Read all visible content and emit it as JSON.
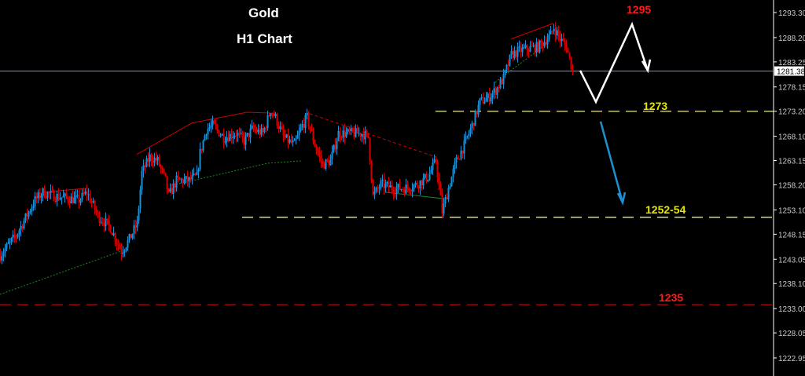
{
  "header": {
    "title": "Gold",
    "subtitle": "H1 Chart"
  },
  "colors": {
    "background": "#000000",
    "up": "#1e90d0",
    "down": "#d00000",
    "axis": "#ffffff",
    "current": "#8a8f99"
  },
  "chart_data": {
    "type": "candlestick",
    "title": "Gold",
    "subtitle": "H1 Chart",
    "ylim": [
      1220.5,
      1295.8
    ],
    "xlim_bars": [
      0,
      492
    ],
    "y_ticks": [
      "1293.30",
      "1288.20",
      "1283.25",
      "1278.15",
      "1273.20",
      "1268.10",
      "1263.15",
      "1258.20",
      "1253.10",
      "1248.15",
      "1243.05",
      "1238.10",
      "1233.00",
      "1228.05",
      "1222.95"
    ],
    "current_price": "1281.38",
    "close_path": [
      [
        0,
        1243.9
      ],
      [
        10,
        1247.9
      ],
      [
        22,
        1255.1
      ],
      [
        27,
        1256.7
      ],
      [
        35,
        1255.9
      ],
      [
        50,
        1255.1
      ],
      [
        55,
        1256.7
      ],
      [
        62,
        1251.9
      ],
      [
        70,
        1249.5
      ],
      [
        77,
        1244.7
      ],
      [
        82,
        1247.1
      ],
      [
        87,
        1250.3
      ],
      [
        90,
        1260.7
      ],
      [
        95,
        1263.9
      ],
      [
        100,
        1263.1
      ],
      [
        105,
        1259.1
      ],
      [
        107,
        1255.9
      ],
      [
        112,
        1259.1
      ],
      [
        120,
        1259.1
      ],
      [
        125,
        1259.9
      ],
      [
        127,
        1264.7
      ],
      [
        131,
        1269.5
      ],
      [
        135,
        1270.3
      ],
      [
        142,
        1267.9
      ],
      [
        150,
        1268.7
      ],
      [
        155,
        1267.1
      ],
      [
        160,
        1269.5
      ],
      [
        167,
        1268.7
      ],
      [
        172,
        1273.5
      ],
      [
        175,
        1271.9
      ],
      [
        180,
        1267.9
      ],
      [
        187,
        1266.3
      ],
      [
        192,
        1270.3
      ],
      [
        195,
        1271.9
      ],
      [
        200,
        1266.3
      ],
      [
        205,
        1262.3
      ],
      [
        210,
        1263.1
      ],
      [
        215,
        1268.7
      ],
      [
        222,
        1268.7
      ],
      [
        230,
        1268.7
      ],
      [
        234,
        1267.9
      ],
      [
        237,
        1255.9
      ],
      [
        242,
        1258.3
      ],
      [
        250,
        1257.5
      ],
      [
        257,
        1257.5
      ],
      [
        265,
        1258.3
      ],
      [
        272,
        1259.9
      ],
      [
        277,
        1263.1
      ],
      [
        281,
        1252.7
      ],
      [
        285,
        1257.5
      ],
      [
        290,
        1263.1
      ],
      [
        295,
        1266.3
      ],
      [
        300,
        1270.3
      ],
      [
        305,
        1275.1
      ],
      [
        310,
        1275.9
      ],
      [
        315,
        1277.5
      ],
      [
        320,
        1279.9
      ],
      [
        325,
        1284.7
      ],
      [
        330,
        1285.5
      ],
      [
        335,
        1285.9
      ],
      [
        342,
        1286.3
      ],
      [
        350,
        1288.7
      ],
      [
        352,
        1290.3
      ],
      [
        356,
        1287.9
      ],
      [
        360,
        1286.3
      ],
      [
        364,
        1281.5
      ]
    ],
    "trendlines": [
      {
        "color": "#d00000",
        "style": "solid",
        "points": [
          [
            27,
            1256.7
          ],
          [
            55,
            1257.5
          ]
        ]
      },
      {
        "color": "#d00000",
        "style": "solid",
        "points": [
          [
            87,
            1264.4
          ],
          [
            122,
            1270.8
          ],
          [
            157,
            1273.0
          ],
          [
            175,
            1272.8
          ]
        ]
      },
      {
        "color": "#d00000",
        "style": "dashed",
        "points": [
          [
            197,
            1272.7
          ],
          [
            277,
            1263.9
          ]
        ]
      },
      {
        "color": "#d00000",
        "style": "solid",
        "points": [
          [
            325,
            1287.9
          ],
          [
            352,
            1291.1
          ]
        ]
      },
      {
        "color": "#1a8a1a",
        "style": "dotted",
        "points": [
          [
            0,
            1235.9
          ],
          [
            77,
            1244.7
          ]
        ]
      },
      {
        "color": "#1a8a1a",
        "style": "dotted",
        "points": [
          [
            112,
            1258.3
          ],
          [
            170,
            1262.6
          ],
          [
            192,
            1263.1
          ]
        ]
      },
      {
        "color": "#1a8a1a",
        "style": "solid",
        "points": [
          [
            245,
            1256.7
          ],
          [
            282,
            1255.4
          ]
        ]
      },
      {
        "color": "#1a8a1a",
        "style": "dotted",
        "points": [
          [
            315,
            1279.1
          ],
          [
            345,
            1286.3
          ]
        ]
      }
    ],
    "levels": [
      {
        "label": "1295",
        "price": 1295,
        "color": "#ff1a1a",
        "line": false
      },
      {
        "label": "1273",
        "price": 1273.2,
        "color": "#e6e600",
        "from_bar": 277,
        "line": true
      },
      {
        "label": "1252-54",
        "price": 1251.6,
        "color": "#e8e8b0",
        "from_bar": 154,
        "line": true
      },
      {
        "label": "1235",
        "price": 1233.8,
        "color": "#c00000",
        "from_bar": 0,
        "line": true
      }
    ],
    "projection_white": [
      [
        369,
        1281.5
      ],
      [
        379,
        1275.1
      ],
      [
        402,
        1290.9
      ],
      [
        412,
        1281.5
      ]
    ],
    "projection_blue": [
      [
        382,
        1271.1
      ],
      [
        396,
        1254.6
      ]
    ]
  }
}
